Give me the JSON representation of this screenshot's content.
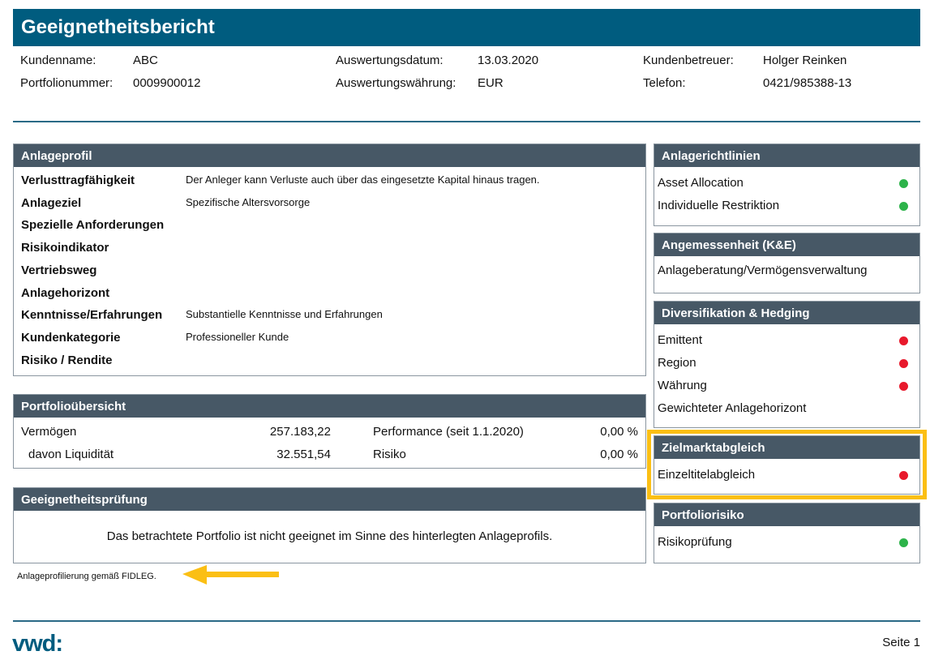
{
  "title": "Geeignetheitsbericht",
  "info": [
    {
      "label": "Kundenname:",
      "value": "ABC"
    },
    {
      "label": "Auswertungsdatum:",
      "value": "13.03.2020"
    },
    {
      "label": "Kundenbetreuer:",
      "value": "Holger Reinken"
    },
    {
      "label": "Portfolionummer:",
      "value": "0009900012"
    },
    {
      "label": "Auswertungswährung:",
      "value": "EUR"
    },
    {
      "label": "Telefon:",
      "value": "0421/985388-13"
    }
  ],
  "anlageprofil": {
    "title": "Anlageprofil",
    "rows": [
      {
        "label": "Verlusttragfähigkeit",
        "value": "Der Anleger kann Verluste auch über das eingesetzte Kapital hinaus tragen."
      },
      {
        "label": "Anlageziel",
        "value": "Spezifische Altersvorsorge"
      },
      {
        "label": "Spezielle Anforderungen",
        "value": ""
      },
      {
        "label": "Risikoindikator",
        "value": ""
      },
      {
        "label": "Vertriebsweg",
        "value": ""
      },
      {
        "label": "Anlagehorizont",
        "value": ""
      },
      {
        "label": "Kenntnisse/Erfahrungen",
        "value": "Substantielle Kenntnisse und Erfahrungen"
      },
      {
        "label": "Kundenkategorie",
        "value": "Professioneller Kunde"
      },
      {
        "label": "Risiko / Rendite",
        "value": ""
      }
    ]
  },
  "portfolio": {
    "title": "Portfolioübersicht",
    "rows": [
      {
        "label": "Vermögen",
        "value": "257.183,22",
        "label2": "Performance (seit 1.1.2020)",
        "value2": "0,00 %"
      },
      {
        "label": "davon Liquidität",
        "value": "32.551,54",
        "label2": "Risiko",
        "value2": "0,00 %"
      }
    ]
  },
  "pruefung": {
    "title": "Geeignetheitsprüfung",
    "text": "Das betrachtete Portfolio ist nicht geeignet im Sinne des hinterlegten Anlageprofils."
  },
  "footnote": "Anlageprofilierung gemäß FIDLEG.",
  "right": [
    {
      "title": "Anlagerichtlinien",
      "items": [
        {
          "label": "Asset Allocation",
          "status": "green"
        },
        {
          "label": "Individuelle Restriktion",
          "status": "green"
        }
      ]
    },
    {
      "title": "Angemessenheit (K&E)",
      "items": [
        {
          "label": "Anlageberatung/Vermögensverwaltung",
          "status": ""
        }
      ]
    },
    {
      "title": "Diversifikation & Hedging",
      "items": [
        {
          "label": "Emittent",
          "status": "red"
        },
        {
          "label": "Region",
          "status": "red"
        },
        {
          "label": "Währung",
          "status": "red"
        },
        {
          "label": "Gewichteter Anlagehorizont",
          "status": ""
        }
      ]
    },
    {
      "title": "Zielmarktabgleich",
      "items": [
        {
          "label": "Einzeltitelabgleich",
          "status": "red"
        }
      ]
    },
    {
      "title": "Portfoliorisiko",
      "items": [
        {
          "label": "Risikoprüfung",
          "status": "green"
        }
      ]
    }
  ],
  "colors": {
    "brand": "#005c7f",
    "section": "#475866",
    "highlight": "#fbbf14",
    "green": "#2db34a",
    "red": "#e8192c"
  },
  "footer": {
    "logo": "vwd:",
    "page": "Seite 1"
  }
}
